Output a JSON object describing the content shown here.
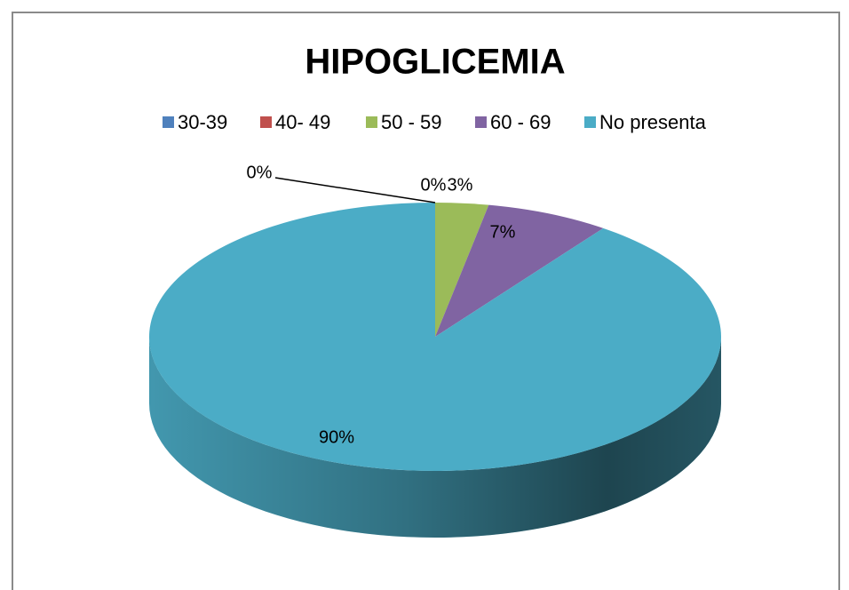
{
  "chart_data": {
    "type": "pie",
    "title": "HIPOGLICEMIA",
    "categories": [
      "30-39",
      "40- 49",
      "50 - 59",
      "60 - 69",
      "No presenta"
    ],
    "values": [
      0,
      0,
      3,
      7,
      90
    ],
    "value_labels": [
      "0%",
      "0%",
      "3%",
      "7%",
      "90%"
    ],
    "colors": [
      "#4f81bd",
      "#c0504d",
      "#9bbb59",
      "#8064a2",
      "#4bacc6"
    ],
    "legend": "top"
  }
}
